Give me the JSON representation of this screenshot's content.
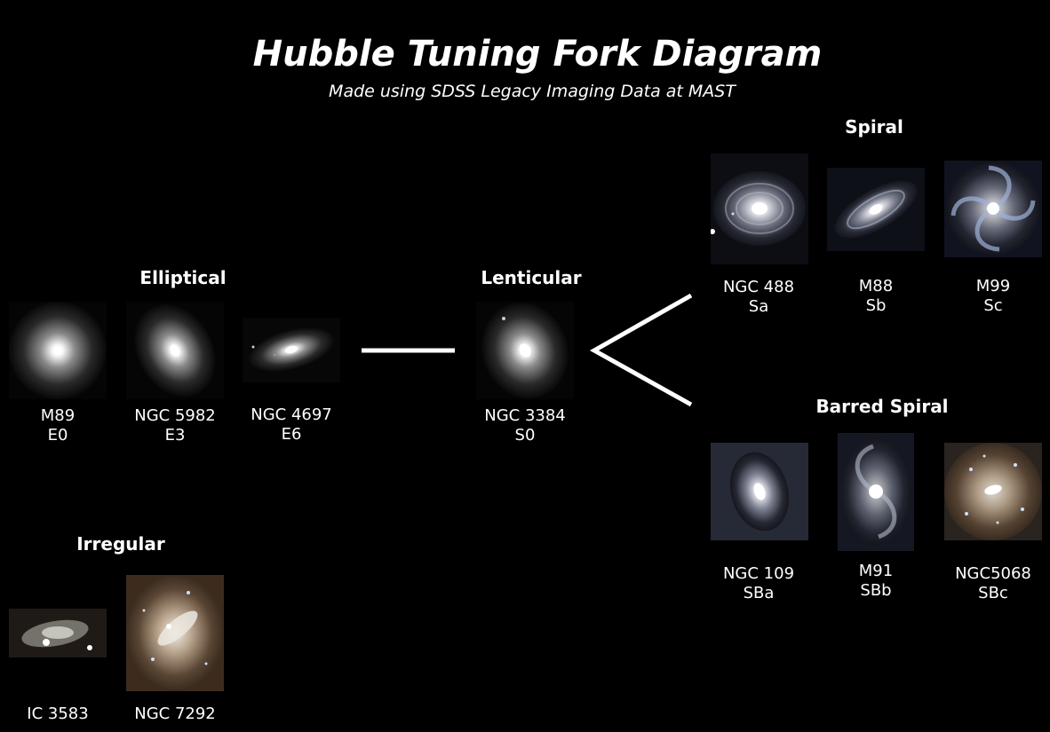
{
  "title": "Hubble Tuning Fork Diagram",
  "subtitle": "Made using SDSS Legacy Imaging Data at MAST",
  "groups": {
    "elliptical": "Elliptical",
    "lenticular": "Lenticular",
    "spiral": "Spiral",
    "barred_spiral": "Barred Spiral",
    "irregular": "Irregular"
  },
  "galaxies": {
    "m89": {
      "name": "M89",
      "type": "E0"
    },
    "ngc5982": {
      "name": "NGC 5982",
      "type": "E3"
    },
    "ngc4697": {
      "name": "NGC 4697",
      "type": "E6"
    },
    "ngc3384": {
      "name": "NGC 3384",
      "type": "S0"
    },
    "ngc488": {
      "name": "NGC 488",
      "type": "Sa"
    },
    "m88": {
      "name": "M88",
      "type": "Sb"
    },
    "m99": {
      "name": "M99",
      "type": "Sc"
    },
    "ngc109": {
      "name": "NGC 109",
      "type": "SBa"
    },
    "m91": {
      "name": "M91",
      "type": "SBb"
    },
    "ngc5068": {
      "name": "NGC5068",
      "type": "SBc"
    },
    "ic3583": {
      "name": "IC 3583"
    },
    "ngc7292": {
      "name": "NGC 7292"
    }
  }
}
